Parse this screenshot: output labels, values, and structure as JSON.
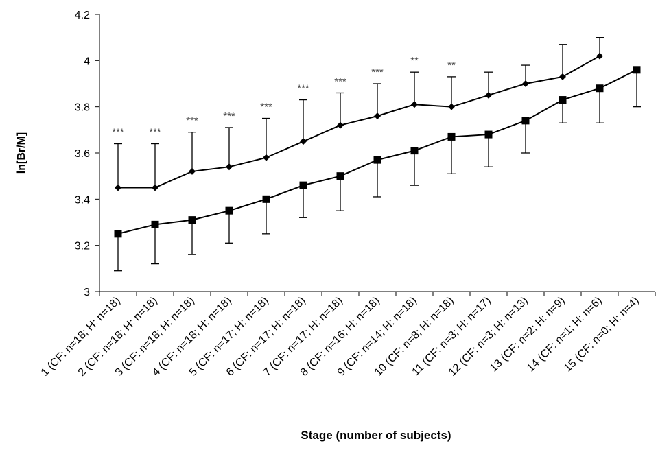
{
  "chart_data": {
    "type": "line",
    "ylabel": "ln[Br/M]",
    "xlabel": "Stage (number of subjects)",
    "categories": [
      "1 (CF: n=18; H: n=18)",
      "2 (CF: n=18; H: n=18)",
      "3 (CF: n=18; H: n=18)",
      "4 (CF: n=18; H: n=18)",
      "5 (CF: n=17; H: n=18)",
      "6 (CF: n=17; H: n=18)",
      "7 (CF: n=17; H: n=18)",
      "8 (CF: n=16; H: n=18)",
      "9 (CF: n=14; H: n=18)",
      "10 (CF: n=8; H: n=18)",
      "11 (CF: n=3; H: n=17)",
      "12 (CF: n=3; H: n=13)",
      "13 (CF: n=2; H: n=9)",
      "14 (CF: n=1; H: n=6)",
      "15 (CF: n=0; H: n=4)"
    ],
    "series": [
      {
        "color": "#000000",
        "marker": "diamond",
        "error_direction": "up",
        "values": [
          3.45,
          3.45,
          3.52,
          3.54,
          3.58,
          3.65,
          3.72,
          3.76,
          3.81,
          3.8,
          3.85,
          3.9,
          3.93,
          4.02,
          null
        ],
        "errors": [
          0.19,
          0.19,
          0.17,
          0.17,
          0.17,
          0.18,
          0.14,
          0.14,
          0.14,
          0.13,
          0.1,
          0.08,
          0.14,
          0.08,
          null
        ]
      },
      {
        "color": "#000000",
        "marker": "square",
        "error_direction": "down",
        "values": [
          3.25,
          3.29,
          3.31,
          3.35,
          3.4,
          3.46,
          3.5,
          3.57,
          3.61,
          3.67,
          3.68,
          3.74,
          3.83,
          3.88,
          3.96
        ],
        "errors": [
          0.16,
          0.17,
          0.15,
          0.14,
          0.15,
          0.14,
          0.15,
          0.16,
          0.15,
          0.16,
          0.14,
          0.14,
          0.1,
          0.15,
          0.16
        ]
      }
    ],
    "annotations": [
      "***",
      "***",
      "***",
      "***",
      "***",
      "***",
      "***",
      "***",
      "**",
      "**",
      null,
      null,
      null,
      null,
      null
    ],
    "ylim": [
      3,
      4.2
    ],
    "yticks": [
      3,
      3.2,
      3.4,
      3.6,
      3.8,
      4,
      4.2
    ],
    "grid": false
  }
}
